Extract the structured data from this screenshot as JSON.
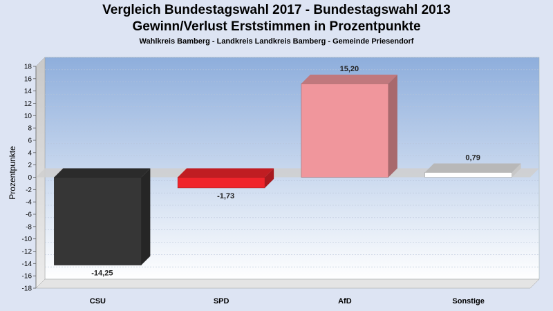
{
  "chart_data": {
    "type": "bar",
    "title": "Vergleich Bundestagswahl 2017 - Bundestagswahl 2013",
    "title_line2": "Gewinn/Verlust Erststimmen in Prozentpunkte",
    "subtitle": "Wahlkreis Bamberg - Landkreis Landkreis Bamberg - Gemeinde Priesendorf",
    "xlabel": "",
    "ylabel": "Prozentpunkte",
    "ylim": [
      -18,
      18
    ],
    "yticks": [
      18,
      16,
      14,
      12,
      10,
      8,
      6,
      4,
      2,
      0,
      -2,
      -4,
      -6,
      -8,
      -10,
      -12,
      -14,
      -16,
      -18
    ],
    "categories": [
      "CSU",
      "SPD",
      "AfD",
      "Sonstige"
    ],
    "values": [
      -14.25,
      -1.73,
      15.2,
      0.79
    ],
    "value_labels": [
      "-14,25",
      "-1,73",
      "15,20",
      "0,79"
    ],
    "colors": [
      "#363636",
      "#f0242b",
      "#f0969c",
      "#ffffff"
    ],
    "grid": true,
    "legend": "none"
  }
}
